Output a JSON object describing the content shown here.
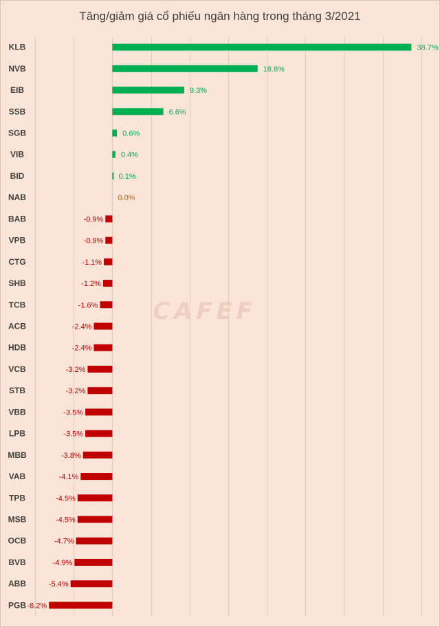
{
  "chart_data": {
    "type": "bar",
    "orientation": "horizontal",
    "title": "Tăng/giảm giá cổ phiếu ngân hàng trong tháng 3/2021",
    "xlabel": "",
    "ylabel": "",
    "unit": "%",
    "grid": true,
    "legend": "none",
    "xlim": [
      -10,
      40
    ],
    "categories": [
      "KLB",
      "NVB",
      "EIB",
      "SSB",
      "SGB",
      "VIB",
      "BID",
      "NAB",
      "BAB",
      "VPB",
      "CTG",
      "SHB",
      "TCB",
      "ACB",
      "HDB",
      "VCB",
      "STB",
      "VBB",
      "LPB",
      "MBB",
      "VAB",
      "TPB",
      "MSB",
      "OCB",
      "BVB",
      "ABB",
      "PGB"
    ],
    "values": [
      38.7,
      18.8,
      9.3,
      6.6,
      0.6,
      0.4,
      0.1,
      0.0,
      -0.9,
      -0.9,
      -1.1,
      -1.2,
      -1.6,
      -2.4,
      -2.4,
      -3.2,
      -3.2,
      -3.5,
      -3.5,
      -3.8,
      -4.1,
      -4.5,
      -4.5,
      -4.7,
      -4.9,
      -5.4,
      -8.2
    ],
    "data_labels": [
      "38.7%",
      "18.8%",
      "9.3%",
      "6.6%",
      "0.6%",
      "0.4%",
      "0.1%",
      "0.0%",
      "-0.9%",
      "-0.9%",
      "-1.1%",
      "-1.2%",
      "-1.6%",
      "-2.4%",
      "-2.4%",
      "-3.2%",
      "-3.2%",
      "-3.5%",
      "-3.5%",
      "-3.8%",
      "-4.1%",
      "-4.5%",
      "-4.5%",
      "-4.7%",
      "-4.9%",
      "-5.4%",
      "-8.2%"
    ],
    "colors": {
      "positive": "#00b050",
      "negative": "#c00000",
      "zero_label": "#c55a11",
      "grid": "#e6cbbd",
      "category_text": "#404040"
    }
  },
  "watermark": "CAFEF"
}
